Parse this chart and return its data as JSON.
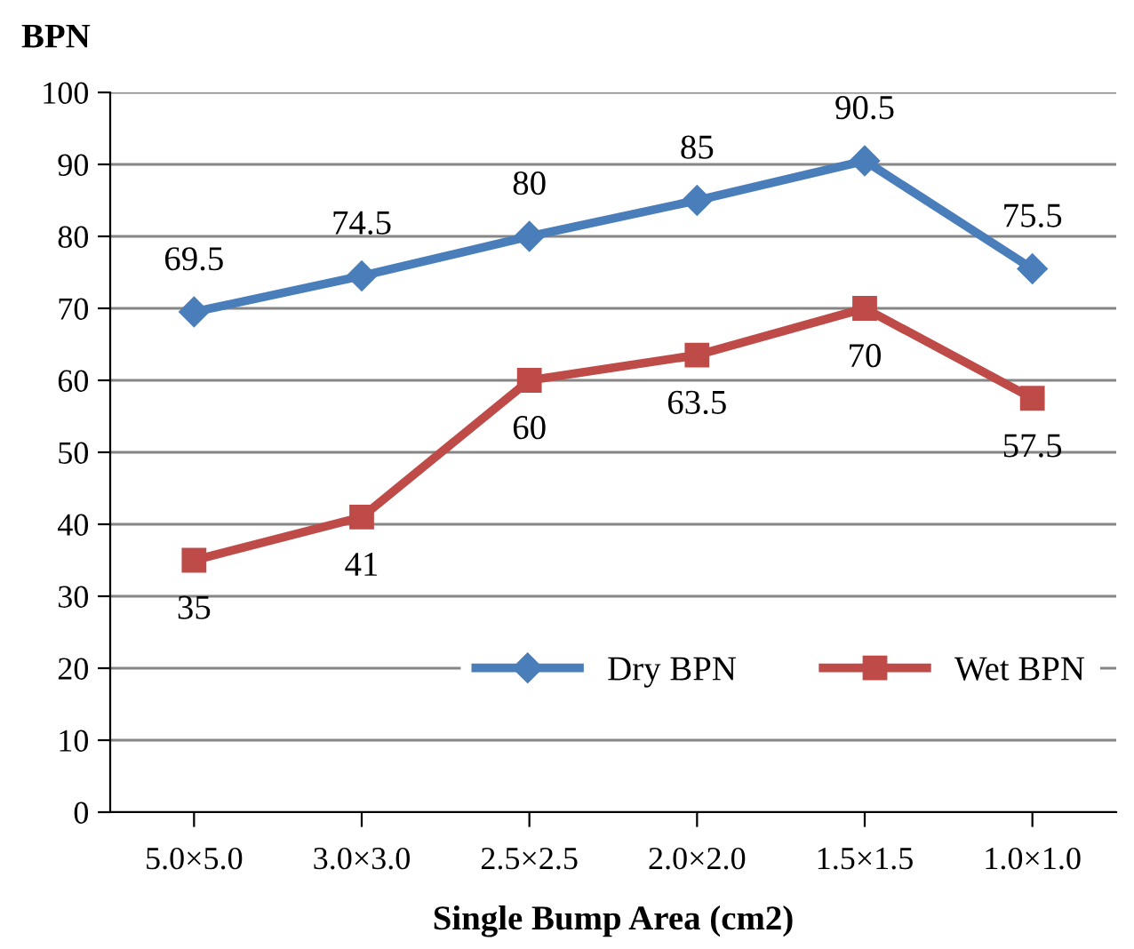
{
  "chart_data": {
    "type": "line",
    "xlabel": "Single Bump Area (cm2)",
    "ylabel": "BPN",
    "categories": [
      "5.0×5.0",
      "3.0×3.0",
      "2.5×2.5",
      "2.0×2.0",
      "1.5×1.5",
      "1.0×1.0"
    ],
    "series": [
      {
        "name": "Dry BPN",
        "color": "#4a7ebb",
        "marker": "diamond",
        "values": [
          69.5,
          74.5,
          80,
          85,
          90.5,
          75.5
        ]
      },
      {
        "name": "Wet BPN",
        "color": "#be4b48",
        "marker": "square",
        "values": [
          35,
          41,
          60,
          63.5,
          70,
          57.5
        ]
      }
    ],
    "ylim": [
      0,
      100
    ],
    "yticks": [
      0,
      10,
      20,
      30,
      40,
      50,
      60,
      70,
      80,
      90,
      100
    ],
    "grid": "y",
    "legend": "bottom right",
    "data_labels": true,
    "line_style": "solid"
  }
}
